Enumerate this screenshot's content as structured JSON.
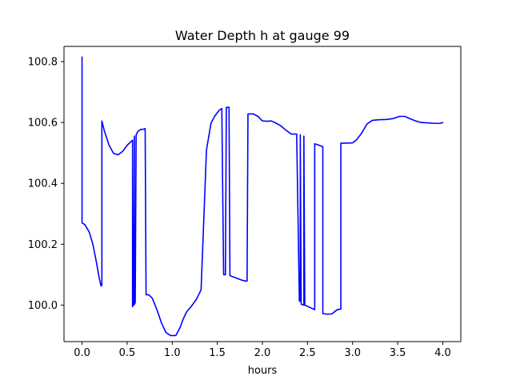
{
  "chart_data": {
    "type": "line",
    "title": "Water Depth h at gauge 99",
    "xlabel": "hours",
    "ylabel": "",
    "xlim": [
      -0.2,
      4.2
    ],
    "ylim": [
      99.88,
      100.85
    ],
    "xticks": [
      0.0,
      0.5,
      1.0,
      1.5,
      2.0,
      2.5,
      3.0,
      3.5,
      4.0
    ],
    "xtick_labels": [
      "0.0",
      "0.5",
      "1.0",
      "1.5",
      "2.0",
      "2.5",
      "3.0",
      "3.5",
      "4.0"
    ],
    "yticks": [
      100.0,
      100.2,
      100.4,
      100.6,
      100.8
    ],
    "ytick_labels": [
      "100.0",
      "100.2",
      "100.4",
      "100.6",
      "100.8"
    ],
    "grid": false,
    "series": [
      {
        "color": "#0000ff",
        "x": [
          0.0,
          0.0,
          0.0,
          0.03,
          0.08,
          0.12,
          0.16,
          0.19,
          0.21,
          0.22,
          0.22,
          0.25,
          0.3,
          0.35,
          0.4,
          0.45,
          0.5,
          0.56,
          0.56,
          0.57,
          0.58,
          0.58,
          0.59,
          0.6,
          0.61,
          0.62,
          0.65,
          0.69,
          0.7,
          0.71,
          0.74,
          0.78,
          0.83,
          0.88,
          0.93,
          0.98,
          1.04,
          1.09,
          1.12,
          1.16,
          1.21,
          1.27,
          1.32,
          1.38,
          1.43,
          1.43,
          1.47,
          1.52,
          1.55,
          1.57,
          1.57,
          1.59,
          1.6,
          1.6,
          1.63,
          1.64,
          1.64,
          1.7,
          1.76,
          1.81,
          1.83,
          1.84,
          1.9,
          1.95,
          2.0,
          2.05,
          2.1,
          2.15,
          2.2,
          2.26,
          2.32,
          2.38,
          2.41,
          2.42,
          2.42,
          2.43,
          2.46,
          2.46,
          2.47,
          2.58,
          2.58,
          2.63,
          2.67,
          2.67,
          2.72,
          2.77,
          2.83,
          2.87,
          2.87,
          2.92,
          3.0,
          3.05,
          3.1,
          3.16,
          3.22,
          3.29,
          3.38,
          3.45,
          3.52,
          3.58,
          3.64,
          3.7,
          3.76,
          3.81,
          3.86,
          3.92,
          3.97,
          4.0
        ],
        "y": [
          100.815,
          100.813,
          100.27,
          100.265,
          100.24,
          100.2,
          100.14,
          100.09,
          100.063,
          100.065,
          100.605,
          100.57,
          100.525,
          100.498,
          100.494,
          100.505,
          100.525,
          100.542,
          99.995,
          100.0,
          100.555,
          100.002,
          100.008,
          100.56,
          100.565,
          100.571,
          100.577,
          100.578,
          100.58,
          100.034,
          100.034,
          100.022,
          99.985,
          99.942,
          99.91,
          99.9,
          99.9,
          99.928,
          99.953,
          99.978,
          99.995,
          100.02,
          100.05,
          100.51,
          100.598,
          100.598,
          100.62,
          100.64,
          100.646,
          100.1,
          100.1,
          100.1,
          100.65,
          100.649,
          100.65,
          100.1,
          100.097,
          100.09,
          100.083,
          100.079,
          100.079,
          100.628,
          100.628,
          100.62,
          100.605,
          100.604,
          100.605,
          100.598,
          100.59,
          100.575,
          100.562,
          100.562,
          100.013,
          100.013,
          100.56,
          100.003,
          100.0,
          100.555,
          100.0,
          99.985,
          100.53,
          100.525,
          100.52,
          99.972,
          99.97,
          99.971,
          99.985,
          99.987,
          100.532,
          100.532,
          100.533,
          100.545,
          100.565,
          100.595,
          100.607,
          100.609,
          100.61,
          100.613,
          100.62,
          100.62,
          100.612,
          100.605,
          100.6,
          100.599,
          100.598,
          100.597,
          100.597,
          100.6
        ]
      }
    ]
  }
}
